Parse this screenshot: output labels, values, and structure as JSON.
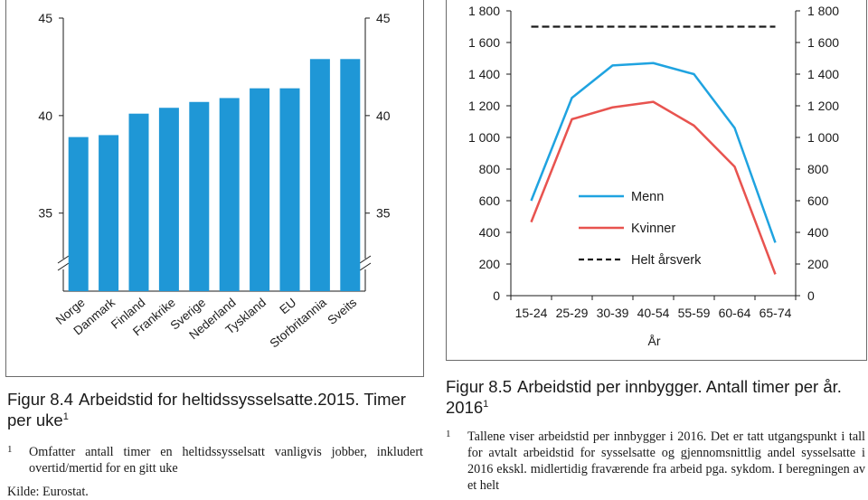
{
  "figure_left": {
    "number": "Figur 8.4",
    "title": "Arbeidstid for heltidssysselsatte.2015. Timer per uke",
    "footnote_marker": "1",
    "footnote_number": "1",
    "footnote": "Omfatter antall timer en heltidssysselsatt vanligvis jobber, inkludert overtid/mertid for en gitt uke",
    "source": "Kilde: Eurostat."
  },
  "figure_right": {
    "number": "Figur 8.5",
    "title": "Arbeidstid per innbygger. Antall timer per år. 2016",
    "footnote_marker": "1",
    "footnote_number": "1",
    "footnote": "Tallene viser arbeidstid per innbygger i 2016. Det er tatt utgangspunkt i tall for avtalt arbeidstid for sysselsatte og gjennomsnittlig andel sysselsatte i 2016 ekskl. midlertidig fraværende fra arbeid pga. sykdom. I beregningen av et helt"
  },
  "chart_data": [
    {
      "type": "bar",
      "categories": [
        "Norge",
        "Danmark",
        "Finland",
        "Frankrike",
        "Sverige",
        "Nederland",
        "Tyskland",
        "EU",
        "Storbritannia",
        "Sveits"
      ],
      "values": [
        38.9,
        39.0,
        40.1,
        40.4,
        40.7,
        40.9,
        41.4,
        41.4,
        42.9,
        42.9
      ],
      "ylim": [
        31,
        45
      ],
      "yticks": [
        "35",
        "40",
        "45"
      ],
      "y_axis_both_sides": true,
      "axis_break": true,
      "color": "#1f97d6"
    },
    {
      "type": "line",
      "x": [
        "15-24",
        "25-29",
        "30-39",
        "40-54",
        "55-59",
        "60-64",
        "65-74"
      ],
      "xlabel": "År",
      "ylim": [
        0,
        1800
      ],
      "yticks": [
        "0",
        "200",
        "400",
        "600",
        "800",
        "1 000",
        "1 200",
        "1 400",
        "1 600",
        "1 800"
      ],
      "y_axis_both_sides": true,
      "series": [
        {
          "name": "Menn",
          "color": "#1fa3e0",
          "values": [
            600,
            1250,
            1455,
            1470,
            1400,
            1060,
            335
          ]
        },
        {
          "name": "Kvinner",
          "color": "#e8534f",
          "values": [
            465,
            1115,
            1190,
            1225,
            1075,
            815,
            135
          ]
        },
        {
          "name": "Helt årsverk",
          "color": "#1a1a1a",
          "dashed": true,
          "values": [
            1700,
            1700,
            1700,
            1700,
            1700,
            1700,
            1700
          ]
        }
      ],
      "legend": "inside-lower-center"
    }
  ]
}
